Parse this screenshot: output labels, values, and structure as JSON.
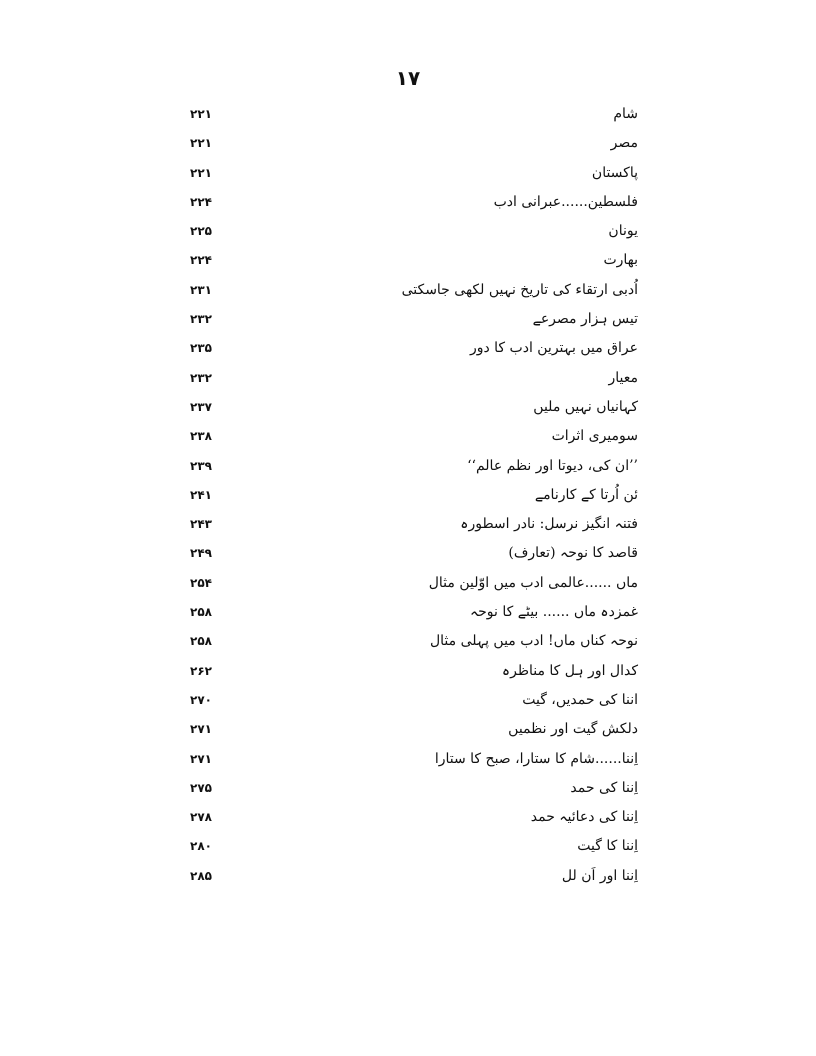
{
  "page_number": "۱۷",
  "entries": [
    {
      "title": "شام",
      "page": "۲۲۱"
    },
    {
      "title": "مصر",
      "page": "۲۲۱"
    },
    {
      "title": "پاکستان",
      "page": "۲۲۱"
    },
    {
      "title": "فلسطین......عبرانی ادب",
      "page": "۲۲۴"
    },
    {
      "title": "یونان",
      "page": "۲۲۵"
    },
    {
      "title": "بھارت",
      "page": "۲۲۴"
    },
    {
      "title": "اُدبی ارتقاء کی تاریخ نہیں لکھی جاسکتی",
      "page": "۲۳۱"
    },
    {
      "title": "تیس ہزار مصرعے",
      "page": "۲۳۲"
    },
    {
      "title": "عراق میں بہترین ادب کا دور",
      "page": "۲۳۵"
    },
    {
      "title": "معیار",
      "page": "۲۳۲"
    },
    {
      "title": "کہانیاں نہیں ملیں",
      "page": "۲۳۷"
    },
    {
      "title": "سومیری اثرات",
      "page": "۲۳۸"
    },
    {
      "title": "’’ان کی، دیوتا اور نظم عالم‘‘",
      "page": "۲۳۹"
    },
    {
      "title": "ئن اُرتا کے کارنامے",
      "page": "۲۴۱"
    },
    {
      "title": "فتنہ انگیز نرسل: نادر اسطورہ",
      "page": "۲۴۳"
    },
    {
      "title": "قاصد کا نوحہ (تعارف)",
      "page": "۲۴۹"
    },
    {
      "title": "ماں ......عالمی ادب میں اوّلین مثال",
      "page": "۲۵۴"
    },
    {
      "title": "غمزدہ ماں ...... بیٹے کا نوحہ",
      "page": "۲۵۸"
    },
    {
      "title": "نوحہ کناں ماں! ادب میں پہلی مثال",
      "page": "۲۵۸"
    },
    {
      "title": "کدال اور ہل کا مناظرہ",
      "page": "۲۶۲"
    },
    {
      "title": "اننا کی حمدیں، گیت",
      "page": "۲۷۰"
    },
    {
      "title": "دلکش گیت اور نظمیں",
      "page": "۲۷۱"
    },
    {
      "title": "اِننا......شام کا ستارا، صبح کا ستارا",
      "page": "۲۷۱"
    },
    {
      "title": "اِننا کی حمد",
      "page": "۲۷۵"
    },
    {
      "title": "اِننا کی دعائیہ حمد",
      "page": "۲۷۸"
    },
    {
      "title": "اِننا کا گیت",
      "page": "۲۸۰"
    },
    {
      "title": "اِننا اور اَن لل",
      "page": "۲۸۵"
    }
  ]
}
